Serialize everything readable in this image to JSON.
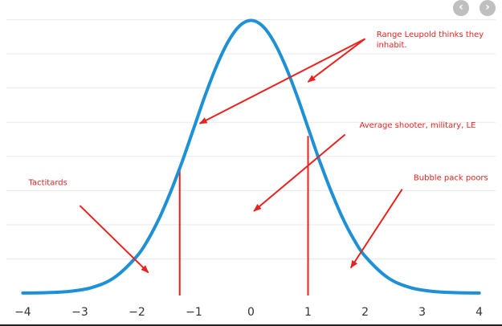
{
  "nav": {
    "prev_icon": "chevron-left-icon",
    "next_icon": "chevron-right-icon",
    "prev_glyph": "‹",
    "next_glyph": "›"
  },
  "colors": {
    "curve": "#1e90d6",
    "annotation": "#e8231f",
    "grid": "#e9e9e9",
    "tick_text": "#333333"
  },
  "chart_data": {
    "type": "line",
    "title": "",
    "xlabel": "",
    "ylabel": "",
    "xlim": [
      -4.4,
      4.4
    ],
    "ylim": [
      0,
      0.41
    ],
    "x_ticks": [
      -4,
      -3,
      -2,
      -1,
      0,
      1,
      2,
      3,
      4
    ],
    "x_tick_labels": [
      "−4",
      "−3",
      "−2",
      "−1",
      "0",
      "1",
      "2",
      "3",
      "4"
    ],
    "y_grid": [
      0.05,
      0.1,
      0.15,
      0.2,
      0.25,
      0.3,
      0.35,
      0.4
    ],
    "grid": true,
    "series": [
      {
        "x": [
          -4.0,
          -3.6,
          -3.2,
          -2.8,
          -2.4,
          -2.0,
          -1.8,
          -1.6,
          -1.4,
          -1.2,
          -1.0,
          -0.8,
          -0.6,
          -0.4,
          -0.2,
          0.0,
          0.2,
          0.4,
          0.6,
          0.8,
          1.0,
          1.2,
          1.4,
          1.6,
          1.8,
          2.0,
          2.4,
          2.8,
          3.2,
          3.6,
          4.0
        ],
        "y": [
          0.0001,
          0.0006,
          0.0024,
          0.0079,
          0.0224,
          0.054,
          0.079,
          0.111,
          0.15,
          0.194,
          0.242,
          0.29,
          0.333,
          0.368,
          0.391,
          0.399,
          0.391,
          0.368,
          0.333,
          0.29,
          0.242,
          0.194,
          0.15,
          0.111,
          0.079,
          0.054,
          0.0224,
          0.0079,
          0.0024,
          0.0006,
          0.0001
        ]
      }
    ],
    "vertical_markers": [
      {
        "x": -1.25,
        "y_top": 0.18
      },
      {
        "x": 1.0,
        "y_top": 0.23
      }
    ],
    "annotations": [
      {
        "text": "Range Leupold thinks they",
        "text2": "inhabit.",
        "tx": 2.2,
        "ty": 0.375,
        "arrows": [
          {
            "from": [
              2.0,
              0.372
            ],
            "to": [
              -0.9,
              0.248
            ]
          },
          {
            "from": [
              2.0,
              0.372
            ],
            "to": [
              1.0,
              0.309
            ]
          }
        ]
      },
      {
        "text": "Average shooter, military, LE",
        "text2": "",
        "tx": 1.9,
        "ty": 0.242,
        "arrows": [
          {
            "from": [
              1.65,
              0.232
            ],
            "to": [
              0.05,
              0.12
            ]
          }
        ]
      },
      {
        "text": "Tactitards",
        "text2": "",
        "tx": -3.9,
        "ty": 0.158,
        "arrows": [
          {
            "from": [
              -3.0,
              0.128
            ],
            "to": [
              -1.8,
              0.03
            ]
          }
        ]
      },
      {
        "text": "Bubble pack poors",
        "text2": "",
        "tx": 2.85,
        "ty": 0.165,
        "arrows": [
          {
            "from": [
              2.65,
              0.152
            ],
            "to": [
              1.75,
              0.037
            ]
          }
        ]
      }
    ]
  }
}
